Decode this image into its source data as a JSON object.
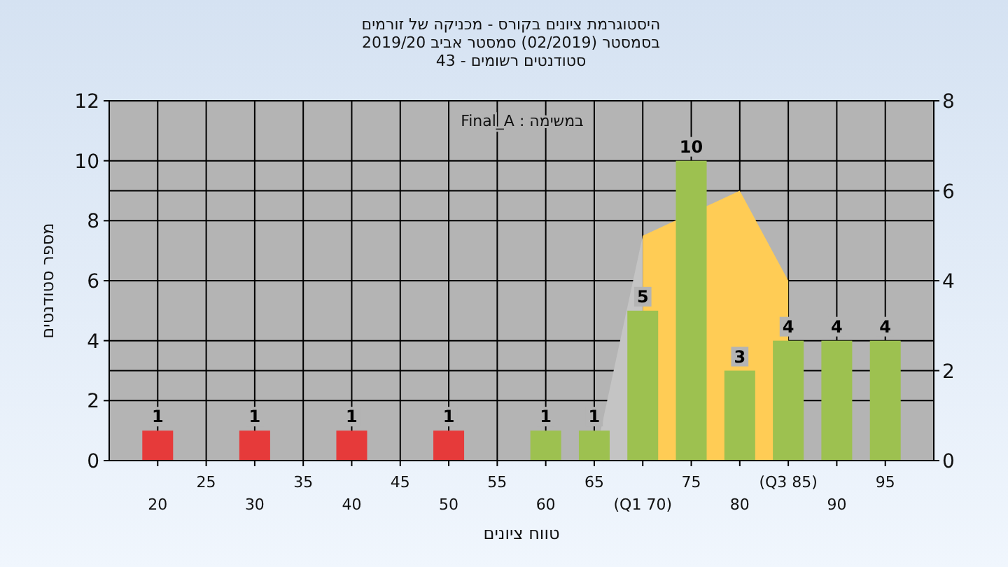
{
  "chart_data": {
    "type": "bar",
    "title": "היסטוגרמת ציונים בקורס - מכניקה של זורמים",
    "subtitle": "בסמסטר  (02/2019)  סמסטר אביב 2019/20\nסטודנטים רשומים - 43",
    "xlabel": "טווח ציונים",
    "ylabel": "מספר סטודנטים",
    "annotations": [
      "במשימה : Final_A"
    ],
    "categories": [
      "20",
      "25",
      "30",
      "35",
      "40",
      "45",
      "50",
      "55",
      "60",
      "65",
      "(Q1 70)",
      "75",
      "80",
      "(Q3 85)",
      "90",
      "95"
    ],
    "series": [
      {
        "type": "area",
        "axis": "y2",
        "color": "#c4c4c4",
        "values": [
          null,
          null,
          null,
          null,
          null,
          null,
          null,
          null,
          null,
          0,
          5,
          null,
          null,
          null,
          null,
          null
        ]
      },
      {
        "type": "area",
        "axis": "y2",
        "color": "#ffcc55",
        "values": [
          null,
          null,
          null,
          null,
          null,
          null,
          null,
          null,
          null,
          null,
          5,
          null,
          6,
          4,
          null,
          null
        ]
      },
      {
        "value_labels": [
          "1",
          null,
          "1",
          null,
          "1",
          null,
          "1",
          null,
          "1",
          "1",
          "5",
          "10",
          "3",
          "4",
          "4",
          "4"
        ],
        "colors": [
          "#e63a3a",
          null,
          "#e63a3a",
          null,
          "#e63a3a",
          null,
          "#e63a3a",
          null,
          "#9dc150",
          "#9dc150",
          "#9dc150",
          "#9dc150",
          "#9dc150",
          "#9dc150",
          "#9dc150",
          "#9dc150"
        ],
        "values": [
          1,
          null,
          1,
          null,
          1,
          null,
          1,
          null,
          1,
          1,
          5,
          10,
          3,
          4,
          4,
          4
        ]
      }
    ],
    "ylim": [
      0,
      12
    ],
    "yticks": [
      0,
      2,
      4,
      6,
      8,
      10,
      12
    ],
    "y2lim": [
      0,
      8
    ],
    "y2ticks": [
      0,
      2,
      4,
      6,
      8
    ],
    "grid": true
  }
}
